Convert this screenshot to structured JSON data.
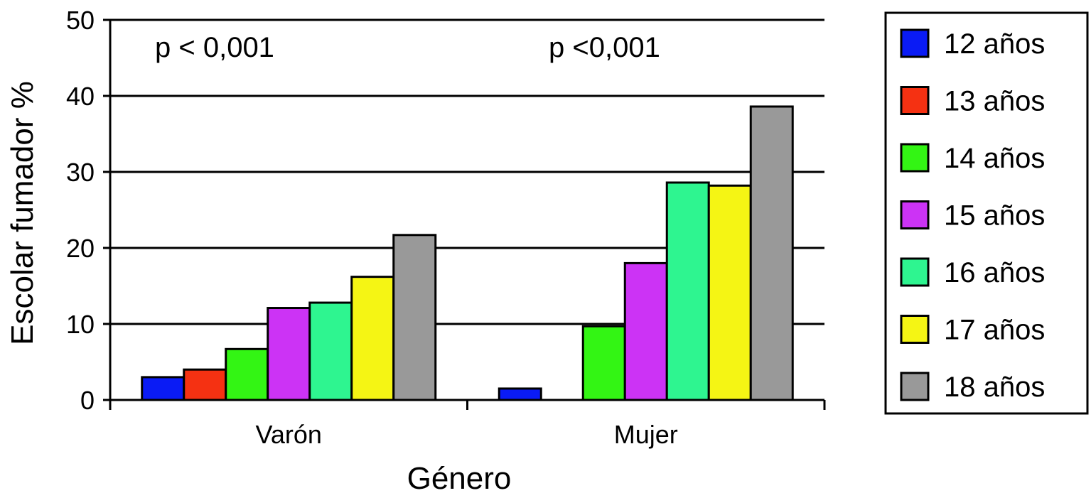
{
  "chart_data": {
    "type": "bar",
    "title": "",
    "xlabel": "Género",
    "ylabel": "Escolar fumador %",
    "ylim": [
      0,
      50
    ],
    "yticks": [
      0,
      10,
      20,
      30,
      40,
      50
    ],
    "grid": true,
    "legend_position": "right",
    "categories": [
      "Varón",
      "Mujer"
    ],
    "annotations": [
      "p < 0,001",
      "p <0,001"
    ],
    "series": [
      {
        "name": "12 años",
        "color": "#0a1bf5",
        "values": [
          3.0,
          1.5
        ]
      },
      {
        "name": "13 años",
        "color": "#f53112",
        "values": [
          4.0,
          0
        ]
      },
      {
        "name": "14 años",
        "color": "#33f514",
        "values": [
          6.7,
          9.7
        ]
      },
      {
        "name": "15 años",
        "color": "#cc33f5",
        "values": [
          12.1,
          18.0
        ]
      },
      {
        "name": "16 años",
        "color": "#2ef590",
        "values": [
          12.8,
          28.6
        ]
      },
      {
        "name": "17 años",
        "color": "#f5f514",
        "values": [
          16.2,
          28.2
        ]
      },
      {
        "name": "18 años",
        "color": "#999999",
        "values": [
          21.7,
          38.6
        ]
      }
    ]
  }
}
